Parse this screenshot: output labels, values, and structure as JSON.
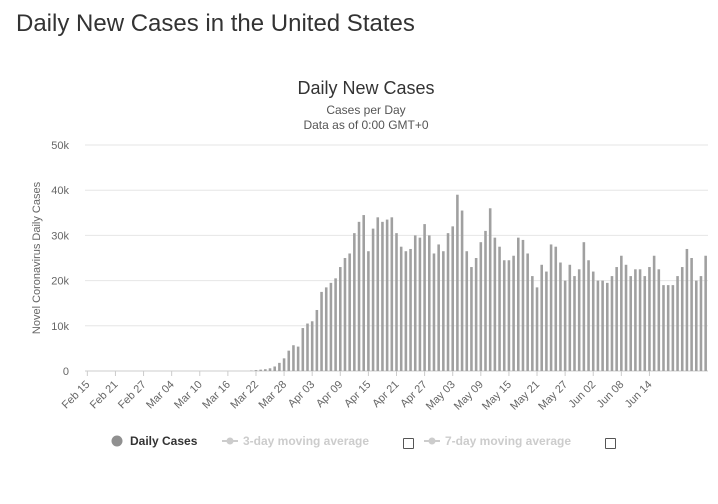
{
  "page": {
    "title": "Daily New Cases in the United States"
  },
  "chart_data": {
    "type": "bar",
    "title": "Daily New Cases",
    "subtitle_line1": "Cases per Day",
    "subtitle_line2": "Data as of 0:00 GMT+0",
    "ylabel": "Novel Coronavirus Daily Cases",
    "xlabel": "",
    "ylim": [
      0,
      50000
    ],
    "y_ticks": [
      {
        "value": 0,
        "label": "0"
      },
      {
        "value": 10000,
        "label": "10k"
      },
      {
        "value": 20000,
        "label": "20k"
      },
      {
        "value": 30000,
        "label": "30k"
      },
      {
        "value": 40000,
        "label": "40k"
      },
      {
        "value": 50000,
        "label": "50k"
      }
    ],
    "x_tick_labels": [
      "Feb 15",
      "Feb 21",
      "Feb 27",
      "Mar 04",
      "Mar 10",
      "Mar 16",
      "Mar 22",
      "Mar 28",
      "Apr 03",
      "Apr 09",
      "Apr 15",
      "Apr 21",
      "Apr 27",
      "May 03",
      "May 09",
      "May 15",
      "May 21",
      "May 27",
      "Jun 02",
      "Jun 08",
      "Jun 14"
    ],
    "start_category": "Feb 15",
    "series": [
      {
        "name": "Daily Cases",
        "color": "#a0a0a0",
        "values": [
          0,
          0,
          0,
          0,
          0,
          0,
          0,
          0,
          0,
          0,
          0,
          0,
          0,
          0,
          0,
          0,
          0,
          0,
          0,
          0,
          0,
          0,
          0,
          0,
          0,
          0,
          0,
          0,
          0,
          0,
          0,
          0,
          0,
          0,
          0,
          100,
          200,
          300,
          400,
          600,
          1000,
          1800,
          2800,
          4500,
          5700,
          5400,
          9500,
          10500,
          11000,
          13500,
          17500,
          18500,
          19500,
          20500,
          23000,
          25000,
          26000,
          30500,
          33000,
          34500,
          26500,
          31500,
          34000,
          33000,
          33500,
          34000,
          30500,
          27500,
          26500,
          27000,
          30000,
          29500,
          32500,
          30000,
          26000,
          28000,
          26500,
          30500,
          32000,
          39000,
          35500,
          26500,
          23000,
          25000,
          28500,
          31000,
          36000,
          29500,
          27500,
          24500,
          24500,
          25500,
          29500,
          29000,
          26000,
          21000,
          18500,
          23500,
          22000,
          28000,
          27500,
          24000,
          20000,
          23500,
          21000,
          22500,
          28500,
          24500,
          22000,
          20000,
          20000,
          19500,
          21000,
          23000,
          25500,
          23500,
          21000,
          22500,
          22500,
          21000,
          23000,
          25500,
          22500,
          19000,
          19000,
          19000,
          21000,
          23000,
          27000,
          25000,
          20000,
          21000,
          25500
        ]
      }
    ],
    "legend": {
      "placement": "bottom",
      "items": [
        {
          "label": "Daily Cases",
          "color": "#909090",
          "active": true
        },
        {
          "label": "3-day moving average",
          "color": "#cccccc",
          "active": false
        },
        {
          "label": "7-day moving average",
          "color": "#cccccc",
          "active": false
        }
      ]
    },
    "grid": true
  },
  "colors": {
    "bar": "#a0a0a0",
    "grid": "#e6e6e6",
    "axis_text": "#666666",
    "title_text": "#333333",
    "legend_inactive": "#cccccc"
  }
}
